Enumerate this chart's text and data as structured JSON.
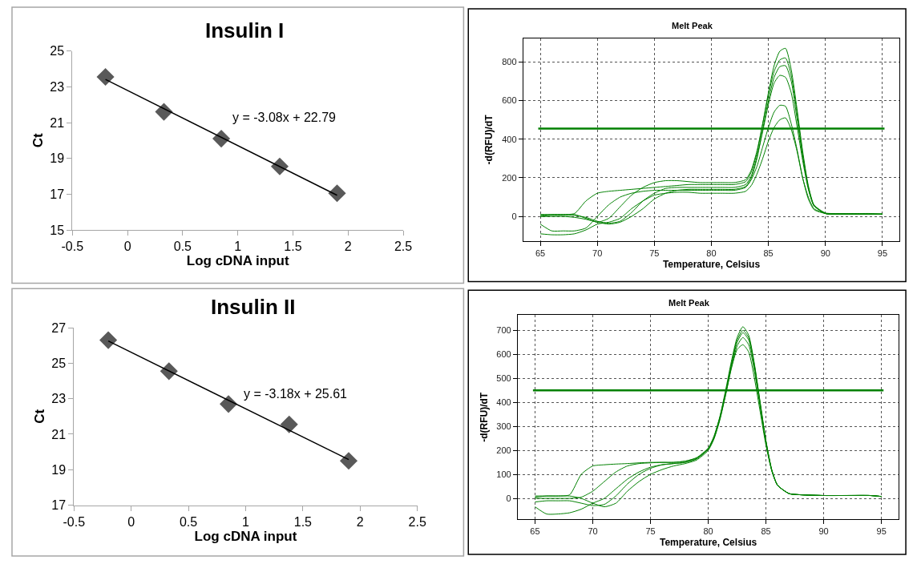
{
  "chart_data": [
    {
      "type": "scatter",
      "title": "Insulin I",
      "xlabel": "Log cDNA input",
      "ylabel": "Ct",
      "xlim": [
        -0.5,
        2.5
      ],
      "xticks": [
        -0.5,
        0,
        0.5,
        1,
        1.5,
        2,
        2.5
      ],
      "ylim": [
        15,
        25
      ],
      "yticks": [
        15,
        17,
        19,
        21,
        23,
        25
      ],
      "grid": false,
      "annotations": [
        "y = -3.08x + 22.79"
      ],
      "series": [
        {
          "type": "scatter",
          "marker": "diamond",
          "color": "#595959",
          "x": [
            -0.2,
            0.33,
            0.85,
            1.38,
            1.9
          ],
          "values": [
            23.55,
            21.6,
            20.1,
            18.55,
            17.05
          ]
        },
        {
          "type": "line",
          "marker": "none",
          "color": "#000000",
          "x": [
            -0.2,
            1.9
          ],
          "values": [
            23.41,
            16.94
          ]
        }
      ]
    },
    {
      "type": "line",
      "title": "Melt Peak",
      "xlabel": "Temperature, Celsius",
      "ylabel": "-d(RFU)/dT",
      "xlim": [
        63.5,
        96.5
      ],
      "xticks": [
        65,
        70,
        75,
        80,
        85,
        90,
        95
      ],
      "ylim": [
        -127,
        921
      ],
      "yticks": [
        0,
        200,
        400,
        600,
        800
      ],
      "grid": true,
      "ref_lines": [
        {
          "axis": "y",
          "value": 455,
          "color": "#008000"
        }
      ],
      "series": [
        {
          "color": "#008000",
          "x": [
            65,
            66,
            67,
            68,
            69,
            70,
            71,
            72,
            73,
            74,
            75,
            76,
            77,
            78,
            79,
            80,
            81,
            82,
            83,
            83.5,
            84,
            84.5,
            85,
            85.5,
            86,
            86.5,
            87,
            87.5,
            88,
            88.5,
            89,
            90,
            91,
            92,
            93,
            94,
            95
          ],
          "values": [
            5,
            10,
            10,
            15,
            80,
            120,
            130,
            135,
            140,
            145,
            150,
            155,
            160,
            165,
            165,
            165,
            165,
            165,
            180,
            230,
            330,
            480,
            640,
            780,
            855,
            870,
            760,
            560,
            340,
            160,
            60,
            18,
            15,
            15,
            15,
            15,
            10
          ]
        },
        {
          "color": "#008000",
          "x": [
            65,
            66,
            67,
            68,
            69,
            70,
            71,
            72,
            73,
            74,
            75,
            76,
            77,
            78,
            79,
            80,
            81,
            82,
            83,
            83.5,
            84,
            84.5,
            85,
            85.5,
            86,
            86.5,
            87,
            87.5,
            88,
            88.5,
            89,
            90,
            91,
            92,
            93,
            94,
            95
          ],
          "values": [
            -90,
            -95,
            -95,
            -90,
            -70,
            -40,
            -30,
            -10,
            40,
            80,
            110,
            120,
            125,
            125,
            120,
            120,
            120,
            120,
            130,
            160,
            220,
            300,
            390,
            460,
            500,
            510,
            450,
            340,
            200,
            100,
            40,
            15,
            12,
            12,
            12,
            12,
            12
          ]
        },
        {
          "color": "#008000",
          "x": [
            65,
            66,
            67,
            68,
            69,
            70,
            71,
            72,
            73,
            74,
            75,
            76,
            77,
            78,
            79,
            80,
            81,
            82,
            83,
            83.5,
            84,
            84.5,
            85,
            85.5,
            86,
            86.5,
            87,
            87.5,
            88,
            88.5,
            89,
            90,
            91,
            92,
            93,
            94,
            95
          ],
          "values": [
            -40,
            -75,
            -75,
            -75,
            -60,
            0,
            60,
            100,
            120,
            130,
            135,
            135,
            135,
            135,
            135,
            135,
            135,
            135,
            150,
            190,
            260,
            360,
            460,
            540,
            575,
            570,
            480,
            350,
            200,
            90,
            35,
            15,
            12,
            12,
            12,
            12,
            12
          ]
        },
        {
          "color": "#008000",
          "x": [
            65,
            66,
            67,
            68,
            69,
            70,
            71,
            72,
            73,
            74,
            75,
            76,
            77,
            78,
            79,
            80,
            81,
            82,
            83,
            83.5,
            84,
            84.5,
            85,
            85.5,
            86,
            86.5,
            87,
            87.5,
            88,
            88.5,
            89,
            90,
            91,
            92,
            93,
            94,
            95
          ],
          "values": [
            0,
            5,
            5,
            5,
            -5,
            -25,
            -35,
            -25,
            20,
            80,
            120,
            145,
            150,
            150,
            150,
            150,
            150,
            150,
            165,
            210,
            310,
            440,
            580,
            690,
            730,
            720,
            640,
            470,
            290,
            140,
            55,
            15,
            12,
            12,
            12,
            12,
            12
          ]
        },
        {
          "color": "#008000",
          "x": [
            65,
            66,
            67,
            68,
            69,
            70,
            71,
            72,
            73,
            74,
            75,
            76,
            77,
            78,
            79,
            80,
            81,
            82,
            83,
            83.5,
            84,
            84.5,
            85,
            85.5,
            86,
            86.5,
            87,
            87.5,
            88,
            88.5,
            89,
            90,
            91,
            92,
            93,
            94,
            95
          ],
          "values": [
            10,
            10,
            10,
            10,
            -10,
            -30,
            -10,
            50,
            110,
            150,
            175,
            185,
            185,
            180,
            175,
            175,
            175,
            175,
            190,
            240,
            340,
            480,
            630,
            750,
            810,
            820,
            730,
            540,
            320,
            150,
            55,
            15,
            12,
            12,
            12,
            12,
            12
          ]
        },
        {
          "color": "#008000",
          "x": [
            65,
            66,
            67,
            68,
            69,
            70,
            71,
            72,
            73,
            74,
            75,
            76,
            77,
            78,
            79,
            80,
            81,
            82,
            83,
            83.5,
            84,
            84.5,
            85,
            85.5,
            86,
            86.5,
            87,
            87.5,
            88,
            88.5,
            89,
            90,
            91,
            92,
            93,
            94,
            95
          ],
          "values": [
            0,
            0,
            0,
            -5,
            -15,
            -30,
            -40,
            -30,
            0,
            40,
            90,
            120,
            135,
            140,
            140,
            140,
            140,
            140,
            155,
            200,
            300,
            450,
            600,
            720,
            775,
            780,
            700,
            510,
            310,
            150,
            55,
            15,
            12,
            12,
            12,
            12,
            12
          ]
        }
      ]
    },
    {
      "type": "scatter",
      "title": "Insulin II",
      "xlabel": "Log cDNA input",
      "ylabel": "Ct",
      "xlim": [
        -0.5,
        2.5
      ],
      "xticks": [
        -0.5,
        0,
        0.5,
        1,
        1.5,
        2,
        2.5
      ],
      "ylim": [
        17,
        27
      ],
      "yticks": [
        17,
        19,
        21,
        23,
        25,
        27
      ],
      "grid": false,
      "annotations": [
        "y = -3.18x + 25.61"
      ],
      "series": [
        {
          "type": "scatter",
          "marker": "diamond",
          "color": "#595959",
          "x": [
            -0.2,
            0.33,
            0.85,
            1.38,
            1.9
          ],
          "values": [
            26.3,
            24.55,
            22.7,
            21.55,
            19.5
          ]
        },
        {
          "type": "line",
          "marker": "none",
          "color": "#000000",
          "x": [
            -0.2,
            1.9
          ],
          "values": [
            26.25,
            19.57
          ]
        }
      ]
    },
    {
      "type": "line",
      "title": "Melt Peak",
      "xlabel": "Temperature, Celsius",
      "ylabel": "-d(RFU)/dT",
      "xlim": [
        63.5,
        96.5
      ],
      "xticks": [
        65,
        70,
        75,
        80,
        85,
        90,
        95
      ],
      "ylim": [
        -87,
        763
      ],
      "yticks": [
        0,
        100,
        200,
        300,
        400,
        500,
        600,
        700
      ],
      "grid": true,
      "ref_lines": [
        {
          "axis": "y",
          "value": 450,
          "color": "#008000"
        }
      ],
      "series": [
        {
          "color": "#008000",
          "x": [
            65,
            66,
            67,
            68,
            69,
            70,
            71,
            72,
            73,
            74,
            75,
            76,
            77,
            78,
            79,
            80,
            80.5,
            81,
            81.5,
            82,
            82.5,
            83,
            83.5,
            84,
            84.5,
            85,
            85.5,
            86,
            87,
            88,
            90,
            92,
            94,
            95
          ],
          "values": [
            5,
            10,
            10,
            15,
            100,
            135,
            140,
            143,
            145,
            148,
            150,
            150,
            150,
            155,
            170,
            210,
            260,
            340,
            450,
            570,
            670,
            715,
            680,
            560,
            400,
            240,
            120,
            55,
            20,
            15,
            12,
            12,
            12,
            8
          ]
        },
        {
          "color": "#008000",
          "x": [
            65,
            66,
            67,
            68,
            69,
            70,
            71,
            72,
            73,
            74,
            75,
            76,
            77,
            78,
            79,
            80,
            80.5,
            81,
            81.5,
            82,
            82.5,
            83,
            83.5,
            84,
            84.5,
            85,
            85.5,
            86,
            87,
            88,
            90,
            92,
            94,
            95
          ],
          "values": [
            -35,
            -65,
            -65,
            -60,
            -45,
            -20,
            0,
            40,
            80,
            110,
            130,
            140,
            145,
            150,
            165,
            205,
            250,
            330,
            430,
            540,
            620,
            640,
            610,
            500,
            360,
            220,
            115,
            55,
            20,
            15,
            12,
            12,
            12,
            8
          ]
        },
        {
          "color": "#008000",
          "x": [
            65,
            66,
            67,
            68,
            69,
            70,
            71,
            72,
            73,
            74,
            75,
            76,
            77,
            78,
            79,
            80,
            80.5,
            81,
            81.5,
            82,
            82.5,
            83,
            83.5,
            84,
            84.5,
            85,
            85.5,
            86,
            87,
            88,
            90,
            92,
            94,
            95
          ],
          "values": [
            0,
            0,
            0,
            0,
            5,
            30,
            70,
            110,
            135,
            145,
            148,
            150,
            150,
            155,
            168,
            208,
            255,
            335,
            440,
            555,
            650,
            690,
            660,
            545,
            390,
            235,
            118,
            55,
            20,
            15,
            12,
            12,
            12,
            8
          ]
        },
        {
          "color": "#008000",
          "x": [
            65,
            66,
            67,
            68,
            69,
            70,
            71,
            72,
            73,
            74,
            75,
            76,
            77,
            78,
            79,
            80,
            80.5,
            81,
            81.5,
            82,
            82.5,
            83,
            83.5,
            84,
            84.5,
            85,
            85.5,
            86,
            87,
            88,
            90,
            92,
            94,
            95
          ],
          "values": [
            10,
            10,
            10,
            10,
            0,
            -20,
            -35,
            -20,
            30,
            70,
            100,
            120,
            135,
            145,
            160,
            200,
            248,
            325,
            430,
            545,
            635,
            670,
            640,
            530,
            380,
            230,
            115,
            55,
            20,
            15,
            12,
            12,
            12,
            8
          ]
        },
        {
          "color": "#008000",
          "x": [
            65,
            66,
            67,
            68,
            69,
            70,
            71,
            72,
            73,
            74,
            75,
            76,
            77,
            78,
            79,
            80,
            80.5,
            81,
            81.5,
            82,
            82.5,
            83,
            83.5,
            84,
            84.5,
            85,
            85.5,
            86,
            87,
            88,
            90,
            92,
            94,
            95
          ],
          "values": [
            -15,
            -10,
            -10,
            -10,
            -20,
            -30,
            -25,
            10,
            60,
            100,
            125,
            140,
            145,
            150,
            165,
            205,
            255,
            335,
            440,
            560,
            660,
            700,
            670,
            555,
            395,
            238,
            118,
            55,
            20,
            15,
            12,
            12,
            12,
            8
          ]
        }
      ]
    }
  ]
}
